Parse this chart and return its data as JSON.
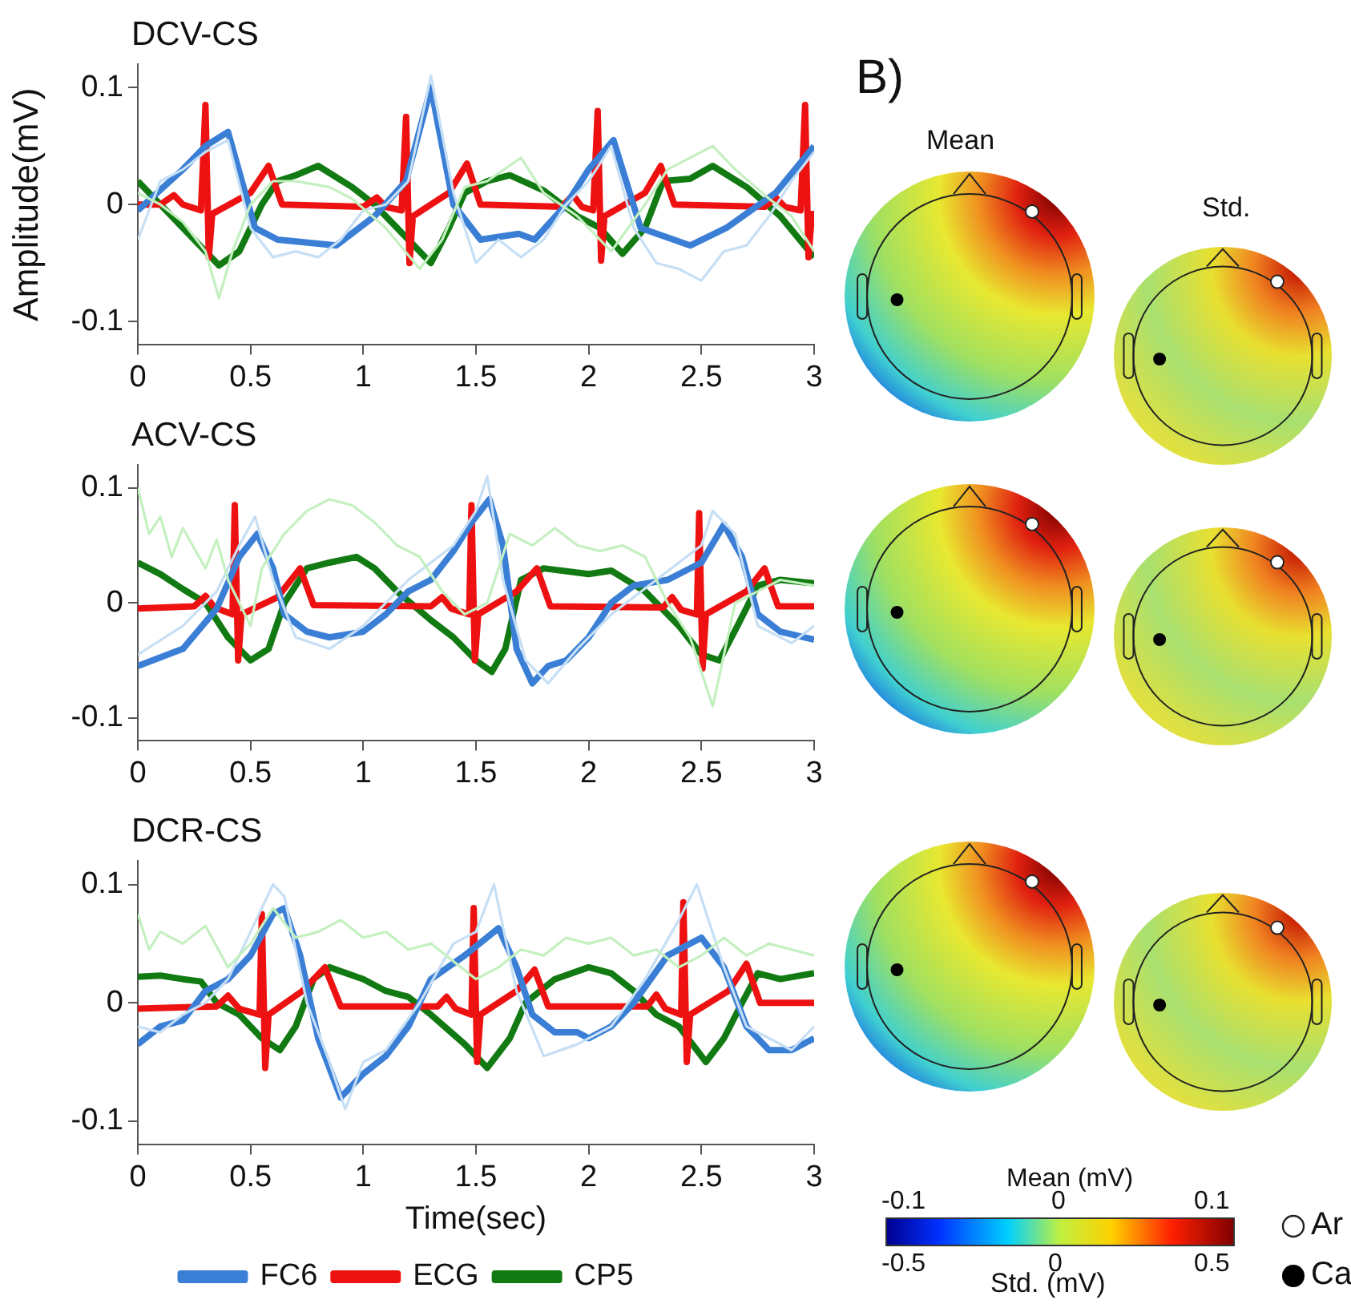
{
  "chart_data": [
    {
      "type": "line",
      "title": "DCV-CS",
      "ylabel": "Amplitude(mV)",
      "xlim": [
        0,
        3
      ],
      "xticks": [
        0,
        0.5,
        1,
        1.5,
        2,
        2.5,
        3
      ],
      "ylim": [
        -0.12,
        0.12
      ],
      "yticks": [
        -0.1,
        0,
        0.1
      ],
      "grid": false,
      "legend": false,
      "series": [
        {
          "color": "#c4f0c0",
          "x": [
            0,
            0.1,
            0.2,
            0.3,
            0.36,
            0.42,
            0.5,
            0.6,
            0.7,
            0.85,
            0.95,
            1.1,
            1.25,
            1.35,
            1.45,
            1.55,
            1.7,
            1.8,
            1.95,
            2.1,
            2.25,
            2.35,
            2.45,
            2.55,
            2.65,
            2.8,
            2.9,
            3.0
          ],
          "values": [
            0.01,
            0.0,
            -0.015,
            -0.04,
            -0.08,
            -0.04,
            0.0,
            0.02,
            0.02,
            0.015,
            0.005,
            -0.02,
            -0.055,
            -0.03,
            0.015,
            0.02,
            0.04,
            0.01,
            -0.01,
            -0.04,
            0.0,
            0.03,
            0.04,
            0.05,
            0.03,
            0.005,
            -0.01,
            -0.04
          ]
        },
        {
          "color": "#c6dff5",
          "x": [
            0,
            0.1,
            0.2,
            0.3,
            0.4,
            0.5,
            0.6,
            0.7,
            0.8,
            0.9,
            1.0,
            1.1,
            1.2,
            1.3,
            1.4,
            1.5,
            1.6,
            1.7,
            1.8,
            1.9,
            2.0,
            2.1,
            2.2,
            2.3,
            2.4,
            2.5,
            2.6,
            2.7,
            2.8,
            2.9,
            3.0
          ],
          "values": [
            -0.03,
            0.02,
            0.03,
            0.045,
            0.055,
            -0.02,
            -0.045,
            -0.04,
            -0.045,
            -0.03,
            -0.005,
            0.0,
            0.02,
            0.11,
            0.01,
            -0.05,
            -0.03,
            -0.045,
            -0.03,
            0.0,
            0.02,
            0.05,
            -0.02,
            -0.05,
            -0.055,
            -0.065,
            -0.04,
            -0.035,
            -0.01,
            0.02,
            0.045
          ]
        },
        {
          "color": "#3a7fd5",
          "x": [
            0,
            0.2,
            0.3,
            0.4,
            0.52,
            0.62,
            0.88,
            1.05,
            1.19,
            1.3,
            1.4,
            1.52,
            1.69,
            1.76,
            1.9,
            2.0,
            2.11,
            2.23,
            2.45,
            2.61,
            2.83,
            3.0
          ],
          "values": [
            -0.005,
            0.03,
            0.05,
            0.062,
            -0.02,
            -0.03,
            -0.035,
            -0.01,
            0.02,
            0.1,
            0.0,
            -0.03,
            -0.025,
            -0.03,
            0.0,
            0.03,
            0.055,
            -0.02,
            -0.035,
            -0.02,
            0.01,
            0.05
          ]
        },
        {
          "color": "#ee1111",
          "x": [
            0,
            0.1,
            0.16,
            0.2,
            0.28,
            0.3,
            0.315,
            0.33,
            0.5,
            0.58,
            0.64,
            1.0,
            1.06,
            1.1,
            1.17,
            1.19,
            1.205,
            1.22,
            1.38,
            1.46,
            1.52,
            1.88,
            1.93,
            1.97,
            2.02,
            2.04,
            2.055,
            2.07,
            2.25,
            2.32,
            2.38,
            2.78,
            2.83,
            2.87,
            2.94,
            2.96,
            2.975,
            2.99,
            3.0
          ],
          "values": [
            0,
            0,
            0.008,
            0,
            -0.005,
            0.085,
            -0.045,
            -0.008,
            0.01,
            0.033,
            0,
            -0.002,
            0.006,
            -0.002,
            -0.005,
            0.075,
            -0.05,
            -0.01,
            0.01,
            0.035,
            0,
            -0.002,
            0.008,
            -0.002,
            -0.005,
            0.08,
            -0.048,
            -0.01,
            0.01,
            0.033,
            0,
            -0.002,
            0.006,
            -0.002,
            -0.005,
            0.085,
            -0.045,
            -0.008,
            -0.008
          ]
        },
        {
          "color": "#127a12",
          "x": [
            0,
            0.1,
            0.2,
            0.36,
            0.45,
            0.55,
            0.62,
            0.7,
            0.8,
            0.95,
            1.05,
            1.15,
            1.3,
            1.38,
            1.45,
            1.55,
            1.65,
            1.8,
            1.95,
            2.05,
            2.15,
            2.25,
            2.33,
            2.45,
            2.55,
            2.7,
            2.85,
            3.0
          ],
          "values": [
            0.02,
            0.0,
            -0.02,
            -0.052,
            -0.04,
            0.0,
            0.02,
            0.025,
            0.033,
            0.015,
            0.0,
            -0.02,
            -0.05,
            -0.02,
            0.01,
            0.02,
            0.025,
            0.012,
            -0.01,
            -0.02,
            -0.042,
            -0.02,
            0.02,
            0.022,
            0.033,
            0.015,
            -0.01,
            -0.045
          ]
        }
      ]
    },
    {
      "type": "line",
      "title": "ACV-CS",
      "xlim": [
        0,
        3
      ],
      "xticks": [
        0,
        0.5,
        1,
        1.5,
        2,
        2.5,
        3
      ],
      "ylim": [
        -0.12,
        0.12
      ],
      "yticks": [
        -0.1,
        0,
        0.1
      ],
      "grid": false,
      "legend": false,
      "series": [
        {
          "color": "#c4f0c0",
          "x": [
            0,
            0.05,
            0.1,
            0.15,
            0.2,
            0.3,
            0.35,
            0.4,
            0.5,
            0.55,
            0.65,
            0.75,
            0.85,
            0.95,
            1.05,
            1.15,
            1.25,
            1.35,
            1.45,
            1.55,
            1.65,
            1.75,
            1.85,
            1.95,
            2.05,
            2.15,
            2.25,
            2.35,
            2.45,
            2.55,
            2.65,
            2.75,
            2.85,
            3.0
          ],
          "values": [
            0.1,
            0.06,
            0.075,
            0.04,
            0.065,
            0.03,
            0.055,
            0.02,
            -0.02,
            0.03,
            0.06,
            0.08,
            0.09,
            0.085,
            0.07,
            0.05,
            0.04,
            0.01,
            -0.01,
            0.0,
            0.06,
            0.05,
            0.065,
            0.05,
            0.045,
            0.05,
            0.04,
            0.0,
            -0.03,
            -0.09,
            0.0,
            0.01,
            0.02,
            0.015
          ]
        },
        {
          "color": "#c6dff5",
          "x": [
            0,
            0.2,
            0.35,
            0.45,
            0.52,
            0.6,
            0.7,
            0.85,
            1.0,
            1.2,
            1.4,
            1.5,
            1.55,
            1.62,
            1.72,
            1.82,
            1.95,
            2.1,
            2.3,
            2.5,
            2.55,
            2.65,
            2.75,
            2.9,
            3.0
          ],
          "values": [
            -0.045,
            -0.02,
            0.01,
            0.05,
            0.075,
            0.02,
            -0.03,
            -0.04,
            -0.02,
            0.02,
            0.05,
            0.08,
            0.11,
            0.02,
            -0.05,
            -0.07,
            -0.04,
            -0.01,
            0.02,
            0.05,
            0.08,
            0.06,
            -0.02,
            -0.035,
            -0.02
          ]
        },
        {
          "color": "#3a7fd5",
          "x": [
            0,
            0.2,
            0.35,
            0.45,
            0.53,
            0.6,
            0.65,
            0.75,
            0.85,
            1.0,
            1.1,
            1.2,
            1.3,
            1.4,
            1.48,
            1.56,
            1.62,
            1.68,
            1.75,
            1.82,
            1.9,
            2.0,
            2.1,
            2.2,
            2.35,
            2.5,
            2.6,
            2.68,
            2.75,
            2.85,
            3.0
          ],
          "values": [
            -0.055,
            -0.04,
            -0.005,
            0.04,
            0.06,
            0.03,
            -0.01,
            -0.025,
            -0.03,
            -0.025,
            -0.01,
            0.01,
            0.02,
            0.045,
            0.07,
            0.09,
            0.05,
            -0.04,
            -0.07,
            -0.055,
            -0.05,
            -0.03,
            0.0,
            0.015,
            0.02,
            0.035,
            0.068,
            0.04,
            -0.01,
            -0.025,
            -0.032
          ]
        },
        {
          "color": "#ee1111",
          "x": [
            0,
            0.25,
            0.3,
            0.34,
            0.42,
            0.43,
            0.445,
            0.46,
            0.62,
            0.72,
            0.78,
            1.3,
            1.35,
            1.39,
            1.47,
            1.48,
            1.495,
            1.51,
            1.68,
            1.77,
            1.83,
            2.33,
            2.37,
            2.41,
            2.48,
            2.49,
            2.505,
            2.52,
            2.7,
            2.78,
            2.84,
            3.0
          ],
          "values": [
            -0.005,
            -0.003,
            0.006,
            -0.004,
            -0.01,
            0.085,
            -0.05,
            -0.01,
            0.005,
            0.03,
            -0.002,
            -0.003,
            0.005,
            -0.005,
            -0.01,
            0.085,
            -0.05,
            -0.01,
            0.01,
            0.03,
            -0.003,
            -0.004,
            0.005,
            -0.006,
            -0.01,
            0.078,
            -0.057,
            -0.01,
            0.01,
            0.03,
            -0.003,
            -0.003
          ]
        },
        {
          "color": "#127a12",
          "x": [
            0,
            0.1,
            0.2,
            0.3,
            0.4,
            0.5,
            0.58,
            0.65,
            0.75,
            0.85,
            0.97,
            1.05,
            1.15,
            1.3,
            1.4,
            1.5,
            1.57,
            1.63,
            1.7,
            1.8,
            2.0,
            2.1,
            2.25,
            2.4,
            2.5,
            2.58,
            2.66,
            2.75,
            2.85,
            3.0
          ],
          "values": [
            0.035,
            0.025,
            0.012,
            0.0,
            -0.03,
            -0.05,
            -0.04,
            0.0,
            0.03,
            0.035,
            0.04,
            0.03,
            0.01,
            -0.015,
            -0.03,
            -0.05,
            -0.06,
            -0.04,
            0.02,
            0.03,
            0.025,
            0.028,
            0.01,
            -0.02,
            -0.045,
            -0.05,
            -0.02,
            0.015,
            0.02,
            0.017
          ]
        }
      ]
    },
    {
      "type": "line",
      "title": "DCR-CS",
      "xlabel": "Time(sec)",
      "xlim": [
        0,
        3
      ],
      "xticks": [
        0,
        0.5,
        1,
        1.5,
        2,
        2.5,
        3
      ],
      "ylim": [
        -0.12,
        0.12
      ],
      "yticks": [
        -0.1,
        0,
        0.1
      ],
      "grid": false,
      "legend": "bottom",
      "series": [
        {
          "color": "#c4f0c0",
          "x": [
            0,
            0.05,
            0.1,
            0.2,
            0.3,
            0.4,
            0.5,
            0.6,
            0.7,
            0.8,
            0.9,
            1.0,
            1.1,
            1.2,
            1.3,
            1.4,
            1.5,
            1.6,
            1.7,
            1.8,
            1.9,
            2.0,
            2.1,
            2.2,
            2.3,
            2.4,
            2.5,
            2.6,
            2.7,
            2.8,
            2.9,
            3.0
          ],
          "values": [
            0.075,
            0.045,
            0.06,
            0.05,
            0.065,
            0.03,
            0.05,
            0.08,
            0.055,
            0.06,
            0.07,
            0.055,
            0.06,
            0.045,
            0.05,
            0.035,
            0.02,
            0.03,
            0.045,
            0.04,
            0.055,
            0.05,
            0.055,
            0.04,
            0.045,
            0.03,
            0.04,
            0.055,
            0.04,
            0.05,
            0.045,
            0.04
          ]
        },
        {
          "color": "#c6dff5",
          "x": [
            0,
            0.1,
            0.2,
            0.3,
            0.4,
            0.5,
            0.6,
            0.65,
            0.75,
            0.85,
            0.92,
            1.0,
            1.1,
            1.25,
            1.4,
            1.5,
            1.58,
            1.68,
            1.8,
            1.95,
            2.1,
            2.25,
            2.4,
            2.48,
            2.6,
            2.7,
            2.8,
            2.9,
            3.0
          ],
          "values": [
            -0.02,
            -0.025,
            -0.01,
            0.0,
            0.02,
            0.06,
            0.1,
            0.09,
            0.0,
            -0.05,
            -0.09,
            -0.05,
            -0.04,
            0.0,
            0.05,
            0.06,
            0.1,
            0.01,
            -0.045,
            -0.035,
            -0.02,
            0.02,
            0.07,
            0.1,
            0.03,
            -0.02,
            -0.03,
            -0.04,
            -0.02
          ]
        },
        {
          "name": "FC6",
          "color": "#3a7fd5",
          "x": [
            0,
            0.1,
            0.2,
            0.3,
            0.4,
            0.5,
            0.6,
            0.65,
            0.72,
            0.8,
            0.9,
            1.0,
            1.1,
            1.2,
            1.3,
            1.45,
            1.6,
            1.68,
            1.75,
            1.85,
            1.95,
            2.0,
            2.1,
            2.2,
            2.35,
            2.5,
            2.6,
            2.7,
            2.8,
            2.9,
            3.0
          ],
          "values": [
            -0.035,
            -0.02,
            -0.015,
            0.01,
            0.02,
            0.04,
            0.075,
            0.08,
            0.04,
            -0.03,
            -0.08,
            -0.06,
            -0.045,
            -0.02,
            0.02,
            0.04,
            0.063,
            0.03,
            -0.01,
            -0.025,
            -0.025,
            -0.03,
            -0.02,
            0.0,
            0.04,
            0.055,
            0.03,
            -0.02,
            -0.04,
            -0.04,
            -0.03
          ]
        },
        {
          "name": "ECG",
          "color": "#ee1111",
          "x": [
            0,
            0.35,
            0.4,
            0.45,
            0.54,
            0.55,
            0.565,
            0.58,
            0.73,
            0.83,
            0.9,
            1.33,
            1.37,
            1.41,
            1.48,
            1.49,
            1.505,
            1.52,
            1.68,
            1.76,
            1.82,
            2.26,
            2.3,
            2.34,
            2.41,
            2.42,
            2.435,
            2.45,
            2.62,
            2.7,
            2.76,
            3.0
          ],
          "values": [
            -0.005,
            -0.003,
            0.006,
            -0.005,
            -0.01,
            0.075,
            -0.055,
            -0.01,
            0.01,
            0.03,
            -0.003,
            -0.003,
            0.005,
            -0.005,
            -0.01,
            0.08,
            -0.05,
            -0.01,
            0.01,
            0.028,
            -0.003,
            -0.003,
            0.007,
            -0.005,
            -0.01,
            0.085,
            -0.05,
            -0.01,
            0.01,
            0.033,
            0.0,
            0.0
          ]
        },
        {
          "name": "CP5",
          "color": "#127a12",
          "x": [
            0,
            0.1,
            0.2,
            0.28,
            0.35,
            0.45,
            0.55,
            0.63,
            0.7,
            0.78,
            0.85,
            1.0,
            1.1,
            1.2,
            1.3,
            1.45,
            1.55,
            1.65,
            1.72,
            1.85,
            2.0,
            2.1,
            2.2,
            2.3,
            2.4,
            2.52,
            2.6,
            2.68,
            2.75,
            2.85,
            3.0
          ],
          "values": [
            0.022,
            0.023,
            0.02,
            0.018,
            0.0,
            -0.01,
            -0.03,
            -0.04,
            -0.02,
            0.02,
            0.03,
            0.02,
            0.01,
            0.005,
            -0.01,
            -0.035,
            -0.055,
            -0.03,
            0.0,
            0.02,
            0.03,
            0.025,
            0.01,
            -0.01,
            -0.02,
            -0.05,
            -0.03,
            0.0,
            0.025,
            0.02,
            0.025
          ]
        }
      ]
    },
    {
      "type": "other",
      "annotations": [
        "B)",
        "Mean",
        "Std.",
        "Mean (mV)",
        "-0.1",
        "0",
        "0.1",
        "-0.5",
        "0",
        "0.5",
        "Std. (mV)",
        "Ar",
        "Ca"
      ]
    }
  ]
}
